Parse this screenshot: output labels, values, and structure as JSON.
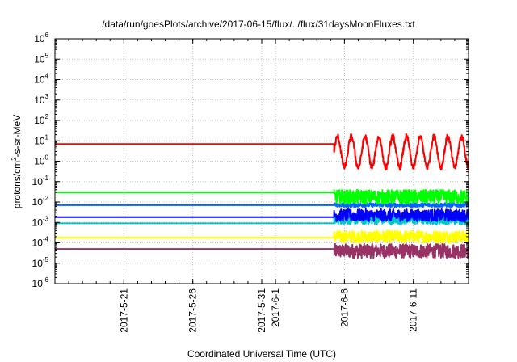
{
  "chart_data": {
    "type": "line",
    "title": "/data/run/goesPlots/archive/2017-06-15/flux/../flux/31daysMoonFluxes.txt",
    "xlabel": "Coordinated Universal Time (UTC)",
    "ylabel": "protons/cm2-s-sr-MeV",
    "ylabel_parts": {
      "pre": "protons/cm",
      "sup": "2",
      "post": "-s-sr-MeV"
    },
    "yscale": "log",
    "ylim_exponents": [
      -6,
      6
    ],
    "y_tick_labels": [
      {
        "base": "10",
        "exp": "-6"
      },
      {
        "base": "10",
        "exp": "-5"
      },
      {
        "base": "10",
        "exp": "-4"
      },
      {
        "base": "10",
        "exp": "-3"
      },
      {
        "base": "10",
        "exp": "-2"
      },
      {
        "base": "10",
        "exp": "-1"
      },
      {
        "base": "10",
        "exp": "0"
      },
      {
        "base": "10",
        "exp": "1"
      },
      {
        "base": "10",
        "exp": "2"
      },
      {
        "base": "10",
        "exp": "3"
      },
      {
        "base": "10",
        "exp": "4"
      },
      {
        "base": "10",
        "exp": "5"
      },
      {
        "base": "10",
        "exp": "6"
      }
    ],
    "xlim": [
      "2017-05-16",
      "2017-06-15"
    ],
    "x_ticks": [
      "2017-5-21",
      "2017-5-26",
      "2017-5-31",
      "2017-6-1",
      "2017-6-6",
      "2017-6-11"
    ],
    "x_tick_dates": [
      "2017-05-21",
      "2017-05-26",
      "2017-05-31",
      "2017-06-01",
      "2017-06-06",
      "2017-06-11"
    ],
    "grid": true,
    "data_start": "2017-06-05T06:00",
    "series": [
      {
        "color": "#ff0000",
        "flat_value": 7,
        "noisy_center_exp": 0.45,
        "noisy_amplitude_exp": 0.75,
        "shape": "diurnal"
      },
      {
        "color": "#00ff00",
        "flat_value": 0.03,
        "noisy_center_exp": -1.75,
        "noisy_amplitude_exp": 0.35,
        "shape": "noise"
      },
      {
        "color": "#0066ff",
        "flat_value": 0.007,
        "noisy_center_exp": -2.15,
        "noisy_amplitude_exp": 0.1,
        "shape": "noise"
      },
      {
        "color": "#0000ff",
        "flat_value": 0.0018,
        "noisy_center_exp": -2.65,
        "noisy_amplitude_exp": 0.3,
        "shape": "noise"
      },
      {
        "color": "#00c8c8",
        "flat_value": 0.0009,
        "noisy_center_exp": -2.85,
        "noisy_amplitude_exp": 0.25,
        "shape": "noise"
      },
      {
        "color": "#ffff00",
        "flat_value": 0.00018,
        "noisy_center_exp": -3.7,
        "noisy_amplitude_exp": 0.3,
        "shape": "noise"
      },
      {
        "color": "#993366",
        "flat_value": 5e-05,
        "noisy_center_exp": -4.4,
        "noisy_amplitude_exp": 0.35,
        "shape": "noise"
      }
    ]
  }
}
